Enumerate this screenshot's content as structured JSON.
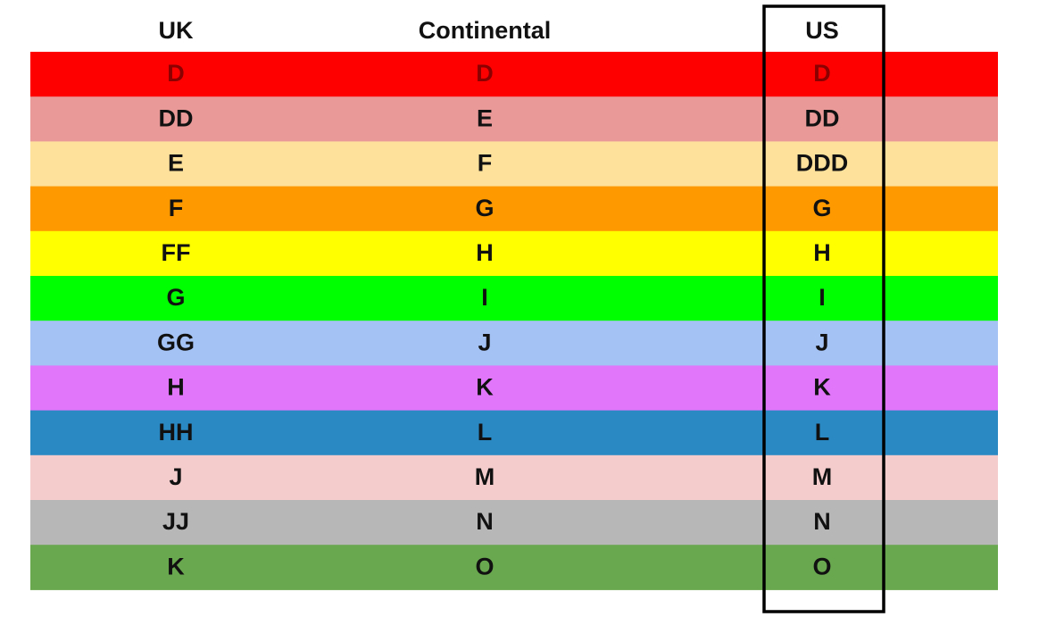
{
  "table": {
    "headers": [
      "UK",
      "Continental",
      "US"
    ],
    "rows": [
      {
        "color": "#ff0000",
        "cells": [
          "D",
          "D",
          "D"
        ]
      },
      {
        "color": "#ea9999",
        "cells": [
          "DD",
          "E",
          "DD"
        ]
      },
      {
        "color": "#fee29c",
        "cells": [
          "E",
          "F",
          "DDD"
        ]
      },
      {
        "color": "#ff9900",
        "cells": [
          "F",
          "G",
          "G"
        ]
      },
      {
        "color": "#ffff00",
        "cells": [
          "FF",
          "H",
          "H"
        ]
      },
      {
        "color": "#00ff00",
        "cells": [
          "G",
          "I",
          "I"
        ]
      },
      {
        "color": "#a4c2f4",
        "cells": [
          "GG",
          "J",
          "J"
        ]
      },
      {
        "color": "#e176fb",
        "cells": [
          "H",
          "K",
          "K"
        ]
      },
      {
        "color": "#2a88c3",
        "cells": [
          "HH",
          "L",
          "L"
        ]
      },
      {
        "color": "#f4cccc",
        "cells": [
          "J",
          "M",
          "M"
        ]
      },
      {
        "color": "#b7b7b7",
        "cells": [
          "JJ",
          "N",
          "N"
        ]
      },
      {
        "color": "#6aa84f",
        "cells": [
          "K",
          "O",
          "O"
        ]
      }
    ]
  }
}
